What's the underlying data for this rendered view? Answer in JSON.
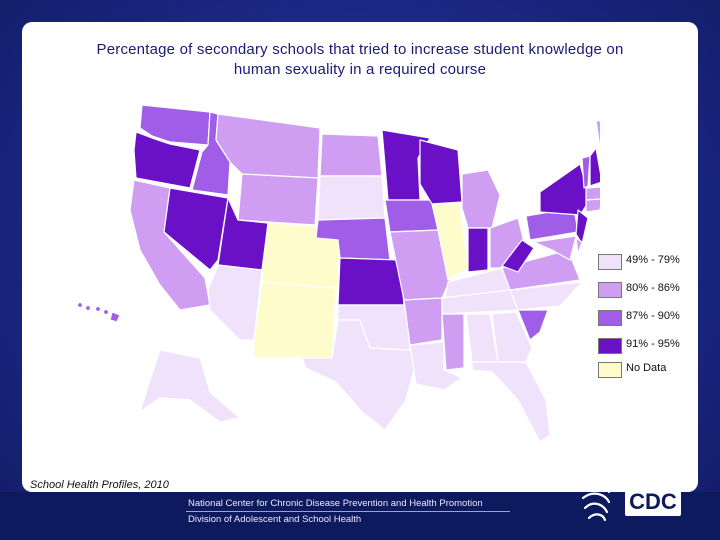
{
  "title": {
    "line1": "Percentage of secondary schools that tried to increase student knowledge on",
    "line2": "human sexuality in a required course"
  },
  "legend": [
    {
      "label": "49% - 79%",
      "color": "#f0e2fb",
      "band": 1
    },
    {
      "label": "80% - 86%",
      "color": "#cf9ef3",
      "band": 2
    },
    {
      "label": "87% - 90%",
      "color": "#a05ee8",
      "band": 3
    },
    {
      "label": "91% - 95%",
      "color": "#6a11c8",
      "band": 4
    },
    {
      "label": "No Data",
      "color": "#fffccc",
      "band": 0
    }
  ],
  "states": {
    "WA": 3,
    "OR": 4,
    "CA": 2,
    "ID": 3,
    "NV": 4,
    "MT": 2,
    "WY": 2,
    "UT": 4,
    "AZ": 1,
    "CO": 0,
    "NM": 0,
    "ND": 2,
    "SD": 1,
    "NE": 3,
    "KS": 4,
    "OK": 1,
    "TX": 1,
    "MN": 4,
    "IA": 3,
    "MO": 2,
    "AR": 2,
    "LA": 1,
    "WI": 4,
    "IL": 0,
    "MI": 2,
    "IN": 4,
    "OH": 2,
    "KY": 1,
    "TN": 1,
    "MS": 2,
    "AL": 1,
    "GA": 1,
    "FL": 1,
    "SC": 3,
    "NC": 1,
    "VA": 2,
    "WV": 4,
    "PA": 3,
    "NY": 4,
    "NJ": 4,
    "DE": 2,
    "MD": 2,
    "CT": 2,
    "RI": 1,
    "MA": 2,
    "VT": 3,
    "NH": 4,
    "ME": 2,
    "AK": 1,
    "HI": 3
  },
  "source": "School Health Profiles, 2010",
  "footer": {
    "line1": "National Center for Chronic Disease Prevention and Health Promotion",
    "line2": "Division of Adolescent and School Health"
  },
  "logo_text": "CDC"
}
